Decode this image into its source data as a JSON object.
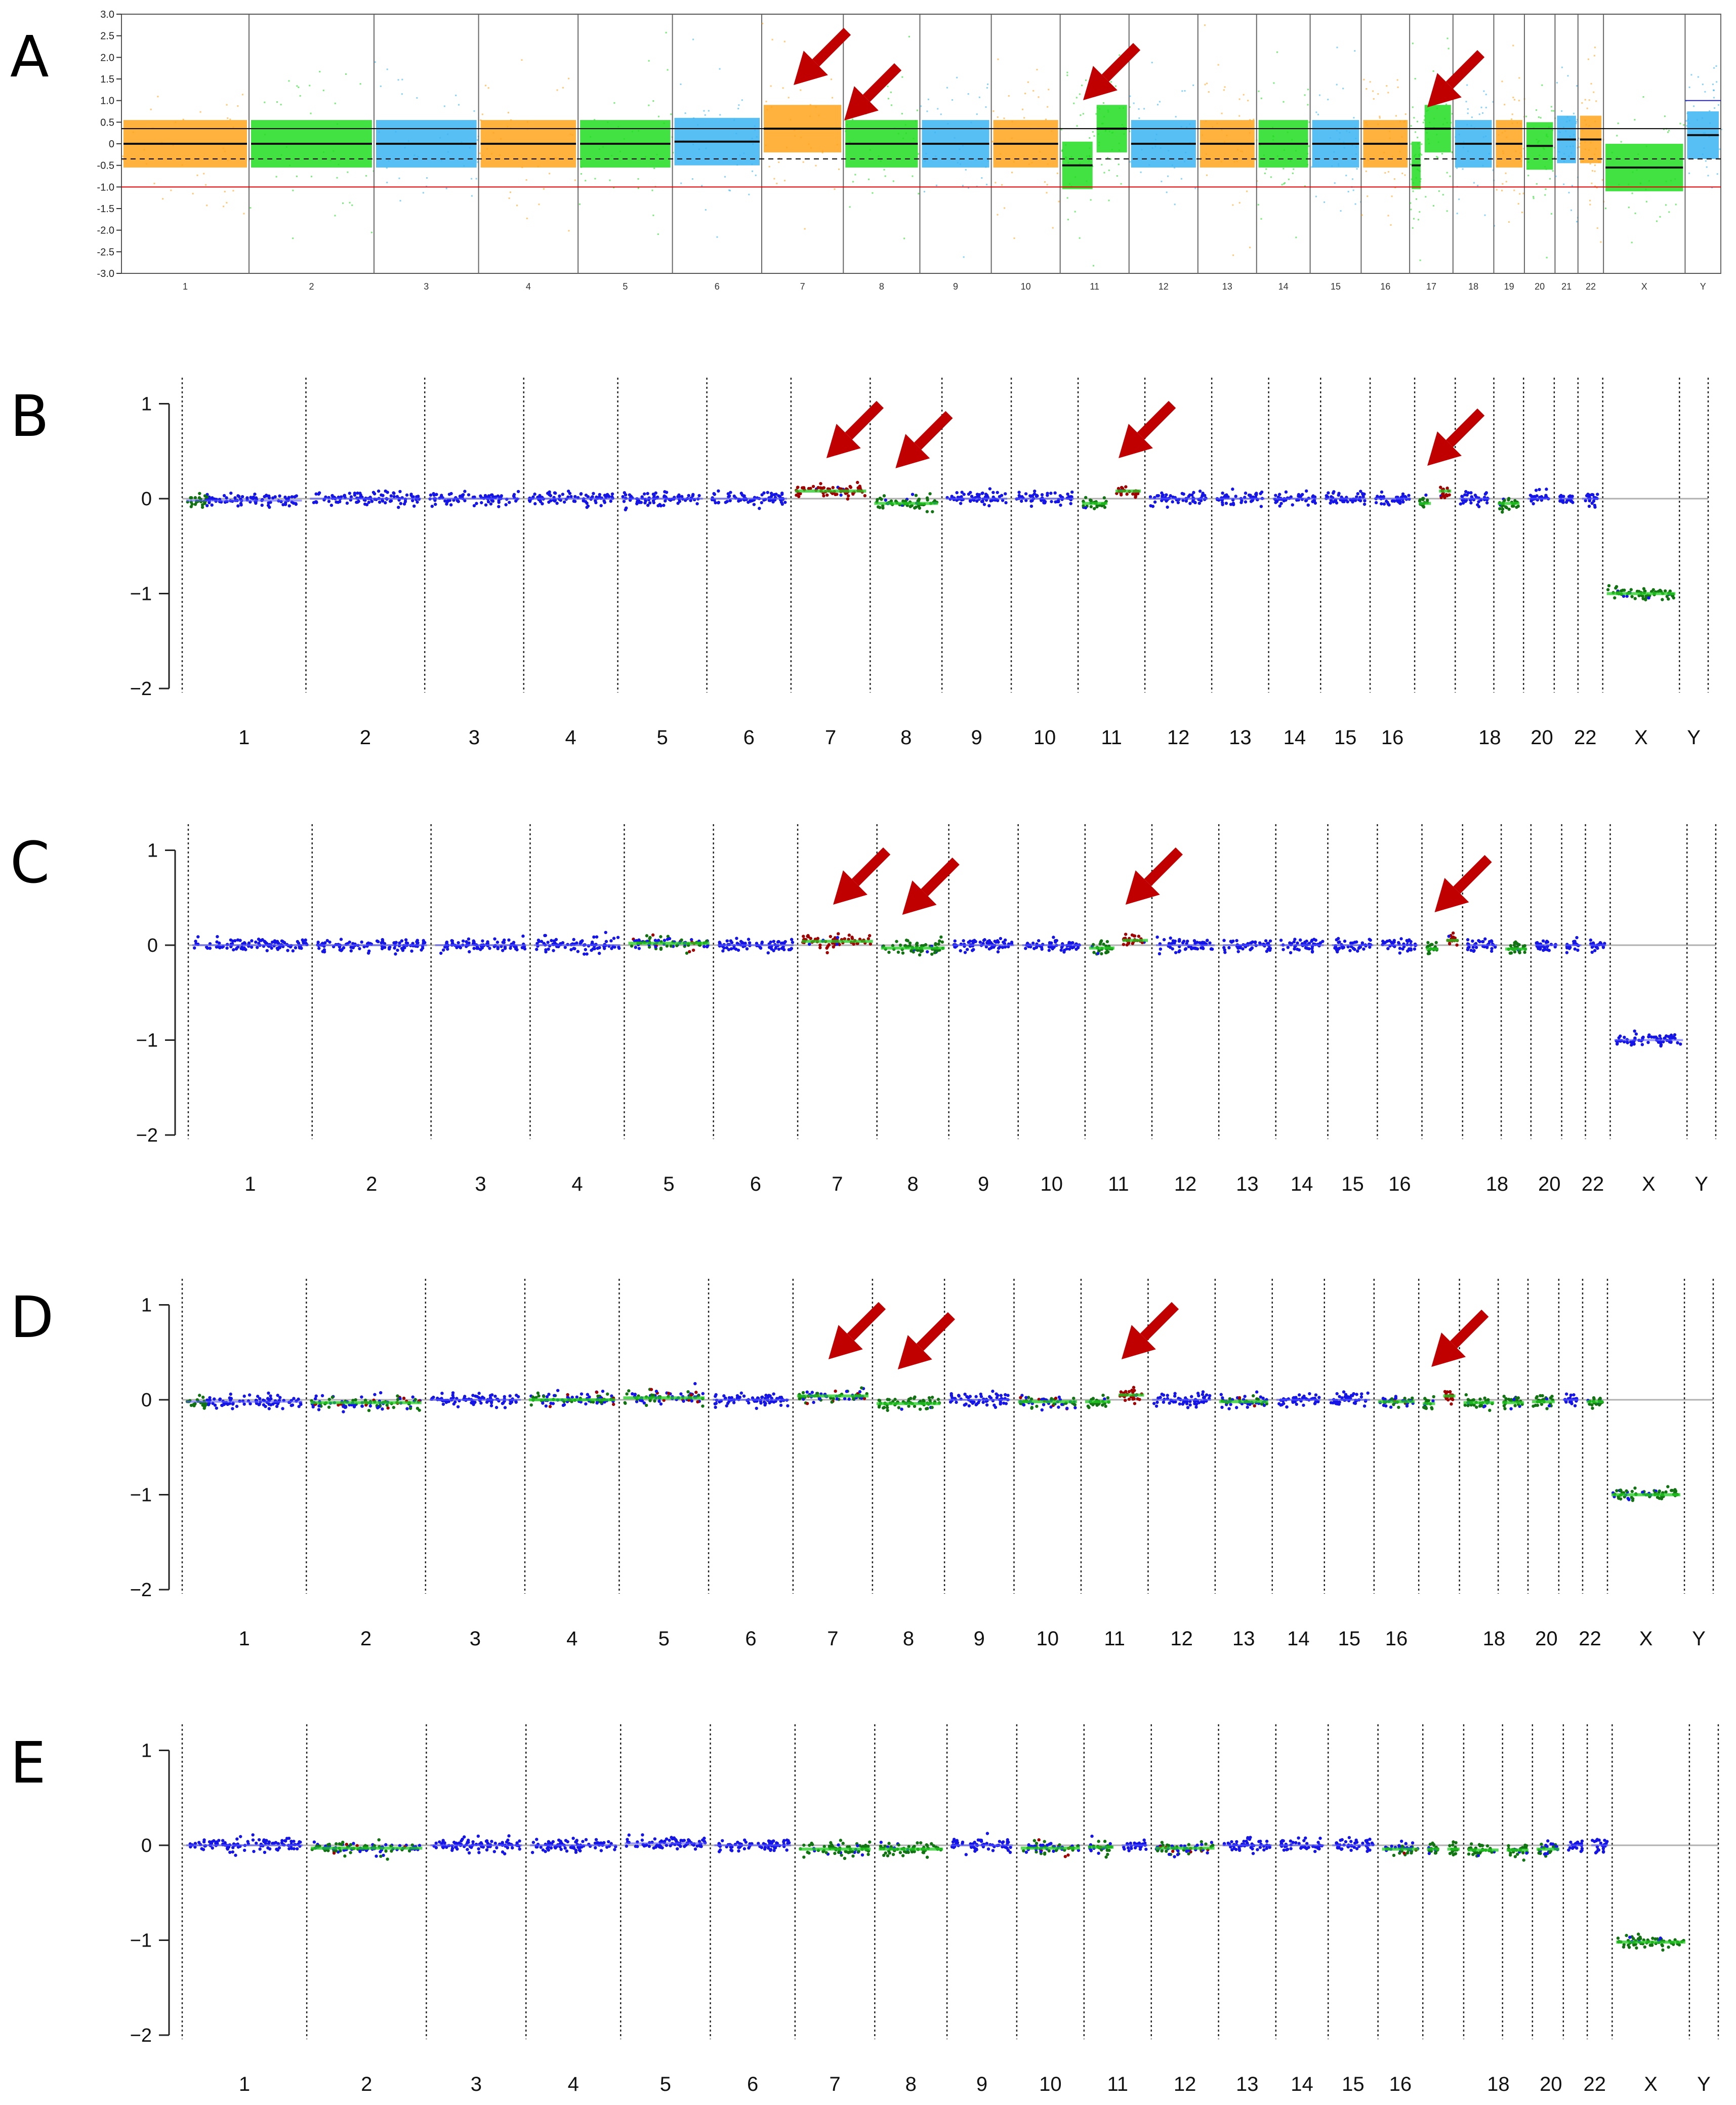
{
  "panels": [
    {
      "letter": "A",
      "style": "microarray",
      "chromosomes": [
        "1",
        "2",
        "3",
        "4",
        "5",
        "6",
        "7",
        "8",
        "9",
        "10",
        "11",
        "12",
        "13",
        "14",
        "15",
        "16",
        "17",
        "18",
        "19",
        "20",
        "21",
        "22",
        "X",
        "Y"
      ],
      "y_ticks": [
        "3.0",
        "2.5",
        "2.0",
        "1.5",
        "1.0",
        "0.5",
        "0",
        "-0.5",
        "-1.0",
        "-1.5",
        "-2.0",
        "-2.5",
        "-3.0"
      ],
      "arrows_at": [
        "7",
        "8",
        "11",
        "17"
      ],
      "colors": {
        "orange": "#ffa41c",
        "green": "#22dd22",
        "blue": "#3ab4f2",
        "arrow": "#c00000"
      },
      "chart_data": {
        "type": "scatter",
        "ylim": [
          -3.0,
          3.0
        ],
        "segments": [
          {
            "chromosome": "1",
            "value": 0.0
          },
          {
            "chromosome": "2",
            "value": 0.0
          },
          {
            "chromosome": "3",
            "value": 0.0
          },
          {
            "chromosome": "4",
            "value": 0.0
          },
          {
            "chromosome": "5",
            "value": 0.0
          },
          {
            "chromosome": "6",
            "value": 0.05
          },
          {
            "chromosome": "7",
            "value": 0.35
          },
          {
            "chromosome": "8",
            "value": 0.0
          },
          {
            "chromosome": "9",
            "value": 0.0
          },
          {
            "chromosome": "10",
            "value": 0.0
          },
          {
            "chromosome": "11p",
            "value": -0.5
          },
          {
            "chromosome": "11q",
            "value": 0.35
          },
          {
            "chromosome": "12",
            "value": 0.0
          },
          {
            "chromosome": "13",
            "value": 0.0
          },
          {
            "chromosome": "14",
            "value": 0.0
          },
          {
            "chromosome": "15",
            "value": 0.0
          },
          {
            "chromosome": "16",
            "value": 0.0
          },
          {
            "chromosome": "17p",
            "value": -0.5
          },
          {
            "chromosome": "17q",
            "value": 0.35
          },
          {
            "chromosome": "18",
            "value": 0.0
          },
          {
            "chromosome": "19",
            "value": 0.0
          },
          {
            "chromosome": "20",
            "value": -0.05
          },
          {
            "chromosome": "21",
            "value": 0.1
          },
          {
            "chromosome": "22",
            "value": 0.1
          },
          {
            "chromosome": "X",
            "value": -0.55
          },
          {
            "chromosome": "Y",
            "value": 0.2
          }
        ]
      }
    },
    {
      "letter": "B",
      "style": "cnv",
      "x_labels": [
        "1",
        "2",
        "3",
        "4",
        "5",
        "6",
        "7",
        "8",
        "9",
        "10",
        "11",
        "12",
        "13",
        "14",
        "15",
        "16",
        "18",
        "20",
        "22",
        "X",
        "Y"
      ],
      "y_ticks": [
        "1",
        "0",
        "−1",
        "−2"
      ],
      "arrows_at": [
        "7",
        "8",
        "11",
        "17"
      ],
      "chart_data": {
        "type": "scatter",
        "ylim": [
          -2,
          1.2
        ],
        "segments": [
          {
            "chromosome": "1",
            "value": -0.02,
            "call": "loss-trace"
          },
          {
            "chromosome": "2",
            "value": 0.0,
            "call": "neutral"
          },
          {
            "chromosome": "3",
            "value": 0.0,
            "call": "neutral"
          },
          {
            "chromosome": "4",
            "value": 0.0,
            "call": "neutral"
          },
          {
            "chromosome": "5",
            "value": 0.0,
            "call": "neutral"
          },
          {
            "chromosome": "6",
            "value": 0.0,
            "call": "neutral"
          },
          {
            "chromosome": "7",
            "value": 0.08,
            "call": "gain"
          },
          {
            "chromosome": "8",
            "value": -0.05,
            "call": "loss"
          },
          {
            "chromosome": "9",
            "value": 0.0,
            "call": "neutral"
          },
          {
            "chromosome": "10",
            "value": 0.0,
            "call": "neutral"
          },
          {
            "chromosome": "11p",
            "value": -0.05,
            "call": "loss"
          },
          {
            "chromosome": "11q",
            "value": 0.08,
            "call": "gain"
          },
          {
            "chromosome": "12",
            "value": 0.0,
            "call": "neutral"
          },
          {
            "chromosome": "13",
            "value": 0.0,
            "call": "neutral"
          },
          {
            "chromosome": "14",
            "value": 0.0,
            "call": "neutral"
          },
          {
            "chromosome": "15",
            "value": 0.0,
            "call": "neutral"
          },
          {
            "chromosome": "16",
            "value": 0.0,
            "call": "neutral"
          },
          {
            "chromosome": "17p",
            "value": -0.05,
            "call": "loss"
          },
          {
            "chromosome": "17q",
            "value": 0.08,
            "call": "gain"
          },
          {
            "chromosome": "18",
            "value": 0.0,
            "call": "neutral"
          },
          {
            "chromosome": "19",
            "value": -0.05,
            "call": "loss"
          },
          {
            "chromosome": "20",
            "value": 0.0,
            "call": "neutral"
          },
          {
            "chromosome": "21",
            "value": 0.0,
            "call": "neutral"
          },
          {
            "chromosome": "22",
            "value": 0.0,
            "call": "neutral"
          },
          {
            "chromosome": "X",
            "value": -1.0,
            "call": "loss"
          },
          {
            "chromosome": "Y",
            "value": 0.0,
            "call": "neutral"
          }
        ]
      }
    },
    {
      "letter": "C",
      "style": "cnv",
      "x_labels": [
        "1",
        "2",
        "3",
        "4",
        "5",
        "6",
        "7",
        "8",
        "9",
        "10",
        "11",
        "12",
        "13",
        "14",
        "15",
        "16",
        "18",
        "20",
        "22",
        "X",
        "Y"
      ],
      "y_ticks": [
        "1",
        "0",
        "−1",
        "−2"
      ],
      "arrows_at": [
        "7",
        "8",
        "11",
        "17"
      ],
      "chart_data": {
        "type": "scatter",
        "ylim": [
          -2,
          1.2
        ],
        "segments": [
          {
            "chromosome": "1",
            "value": 0.0,
            "call": "neutral"
          },
          {
            "chromosome": "2",
            "value": 0.0,
            "call": "neutral"
          },
          {
            "chromosome": "3",
            "value": 0.0,
            "call": "neutral"
          },
          {
            "chromosome": "4",
            "value": 0.0,
            "call": "neutral"
          },
          {
            "chromosome": "5",
            "value": 0.02,
            "call": "mixed"
          },
          {
            "chromosome": "6",
            "value": 0.0,
            "call": "neutral"
          },
          {
            "chromosome": "7",
            "value": 0.04,
            "call": "gain"
          },
          {
            "chromosome": "8",
            "value": -0.03,
            "call": "loss"
          },
          {
            "chromosome": "9",
            "value": 0.0,
            "call": "neutral"
          },
          {
            "chromosome": "10",
            "value": 0.0,
            "call": "neutral"
          },
          {
            "chromosome": "11p",
            "value": -0.03,
            "call": "loss"
          },
          {
            "chromosome": "11q",
            "value": 0.05,
            "call": "gain"
          },
          {
            "chromosome": "12",
            "value": 0.0,
            "call": "neutral"
          },
          {
            "chromosome": "13",
            "value": 0.0,
            "call": "neutral"
          },
          {
            "chromosome": "14",
            "value": 0.0,
            "call": "neutral"
          },
          {
            "chromosome": "15",
            "value": 0.0,
            "call": "neutral"
          },
          {
            "chromosome": "16",
            "value": 0.0,
            "call": "neutral"
          },
          {
            "chromosome": "17p",
            "value": -0.04,
            "call": "loss"
          },
          {
            "chromosome": "17q",
            "value": 0.05,
            "call": "gain"
          },
          {
            "chromosome": "18",
            "value": 0.0,
            "call": "neutral"
          },
          {
            "chromosome": "19",
            "value": -0.04,
            "call": "loss"
          },
          {
            "chromosome": "20",
            "value": 0.0,
            "call": "neutral"
          },
          {
            "chromosome": "21",
            "value": 0.0,
            "call": "neutral"
          },
          {
            "chromosome": "22",
            "value": 0.0,
            "call": "neutral"
          },
          {
            "chromosome": "X",
            "value": -1.0,
            "call": "loss-blue"
          },
          {
            "chromosome": "Y",
            "value": 0.0,
            "call": "neutral"
          }
        ]
      }
    },
    {
      "letter": "D",
      "style": "cnv",
      "x_labels": [
        "1",
        "2",
        "3",
        "4",
        "5",
        "6",
        "7",
        "8",
        "9",
        "10",
        "11",
        "12",
        "13",
        "14",
        "15",
        "16",
        "18",
        "20",
        "22",
        "X",
        "Y"
      ],
      "y_ticks": [
        "1",
        "0",
        "−1",
        "−2"
      ],
      "arrows_at": [
        "7",
        "8",
        "11",
        "17"
      ],
      "chart_data": {
        "type": "scatter",
        "ylim": [
          -2,
          1.2
        ],
        "segments": [
          {
            "chromosome": "1",
            "value": -0.02,
            "call": "loss-trace"
          },
          {
            "chromosome": "2",
            "value": -0.03,
            "call": "mixed"
          },
          {
            "chromosome": "3",
            "value": 0.0,
            "call": "neutral"
          },
          {
            "chromosome": "4",
            "value": 0.0,
            "call": "mixed"
          },
          {
            "chromosome": "5",
            "value": 0.02,
            "call": "mixed"
          },
          {
            "chromosome": "6",
            "value": 0.0,
            "call": "neutral"
          },
          {
            "chromosome": "7",
            "value": 0.04,
            "call": "mixed"
          },
          {
            "chromosome": "8",
            "value": -0.04,
            "call": "loss"
          },
          {
            "chromosome": "9",
            "value": 0.0,
            "call": "neutral"
          },
          {
            "chromosome": "10",
            "value": -0.02,
            "call": "mixed"
          },
          {
            "chromosome": "11p",
            "value": -0.02,
            "call": "loss"
          },
          {
            "chromosome": "11q",
            "value": 0.05,
            "call": "gain"
          },
          {
            "chromosome": "12",
            "value": 0.0,
            "call": "neutral"
          },
          {
            "chromosome": "13",
            "value": -0.02,
            "call": "mixed"
          },
          {
            "chromosome": "14",
            "value": 0.0,
            "call": "neutral"
          },
          {
            "chromosome": "15",
            "value": 0.0,
            "call": "neutral"
          },
          {
            "chromosome": "16",
            "value": -0.02,
            "call": "mixed"
          },
          {
            "chromosome": "17p",
            "value": -0.04,
            "call": "loss"
          },
          {
            "chromosome": "17q",
            "value": 0.04,
            "call": "gain"
          },
          {
            "chromosome": "18",
            "value": -0.03,
            "call": "loss"
          },
          {
            "chromosome": "19",
            "value": -0.03,
            "call": "loss"
          },
          {
            "chromosome": "20",
            "value": -0.02,
            "call": "loss"
          },
          {
            "chromosome": "21",
            "value": 0.0,
            "call": "neutral"
          },
          {
            "chromosome": "22",
            "value": -0.02,
            "call": "loss"
          },
          {
            "chromosome": "X",
            "value": -1.0,
            "call": "loss"
          },
          {
            "chromosome": "Y",
            "value": 0.0,
            "call": "neutral"
          }
        ]
      }
    },
    {
      "letter": "E",
      "style": "cnv",
      "x_labels": [
        "1",
        "2",
        "3",
        "4",
        "5",
        "6",
        "7",
        "8",
        "9",
        "10",
        "11",
        "12",
        "13",
        "14",
        "15",
        "16",
        "18",
        "20",
        "22",
        "X",
        "Y"
      ],
      "y_ticks": [
        "1",
        "0",
        "−1",
        "−2"
      ],
      "arrows_at": [],
      "chart_data": {
        "type": "scatter",
        "ylim": [
          -2,
          1.2
        ],
        "segments": [
          {
            "chromosome": "1",
            "value": 0.0,
            "call": "neutral"
          },
          {
            "chromosome": "2",
            "value": -0.03,
            "call": "mixed"
          },
          {
            "chromosome": "3",
            "value": 0.0,
            "call": "neutral"
          },
          {
            "chromosome": "4",
            "value": 0.0,
            "call": "neutral"
          },
          {
            "chromosome": "5",
            "value": 0.02,
            "call": "neutral"
          },
          {
            "chromosome": "6",
            "value": 0.0,
            "call": "neutral"
          },
          {
            "chromosome": "7",
            "value": -0.04,
            "call": "loss"
          },
          {
            "chromosome": "8",
            "value": -0.04,
            "call": "loss"
          },
          {
            "chromosome": "9",
            "value": 0.0,
            "call": "neutral"
          },
          {
            "chromosome": "10",
            "value": -0.03,
            "call": "mixed"
          },
          {
            "chromosome": "11p",
            "value": -0.02,
            "call": "mixed"
          },
          {
            "chromosome": "11q",
            "value": 0.0,
            "call": "neutral"
          },
          {
            "chromosome": "12",
            "value": -0.03,
            "call": "mixed"
          },
          {
            "chromosome": "13",
            "value": 0.0,
            "call": "neutral"
          },
          {
            "chromosome": "14",
            "value": 0.0,
            "call": "neutral"
          },
          {
            "chromosome": "15",
            "value": 0.0,
            "call": "neutral"
          },
          {
            "chromosome": "16",
            "value": -0.04,
            "call": "mixed"
          },
          {
            "chromosome": "17p",
            "value": -0.04,
            "call": "loss"
          },
          {
            "chromosome": "17q",
            "value": -0.04,
            "call": "loss"
          },
          {
            "chromosome": "18",
            "value": -0.05,
            "call": "loss"
          },
          {
            "chromosome": "19",
            "value": -0.05,
            "call": "loss"
          },
          {
            "chromosome": "20",
            "value": -0.04,
            "call": "mixed"
          },
          {
            "chromosome": "21",
            "value": 0.0,
            "call": "neutral"
          },
          {
            "chromosome": "22",
            "value": 0.0,
            "call": "neutral"
          },
          {
            "chromosome": "X",
            "value": -1.02,
            "call": "loss"
          },
          {
            "chromosome": "Y",
            "value": 0.0,
            "call": "neutral"
          }
        ]
      }
    }
  ]
}
